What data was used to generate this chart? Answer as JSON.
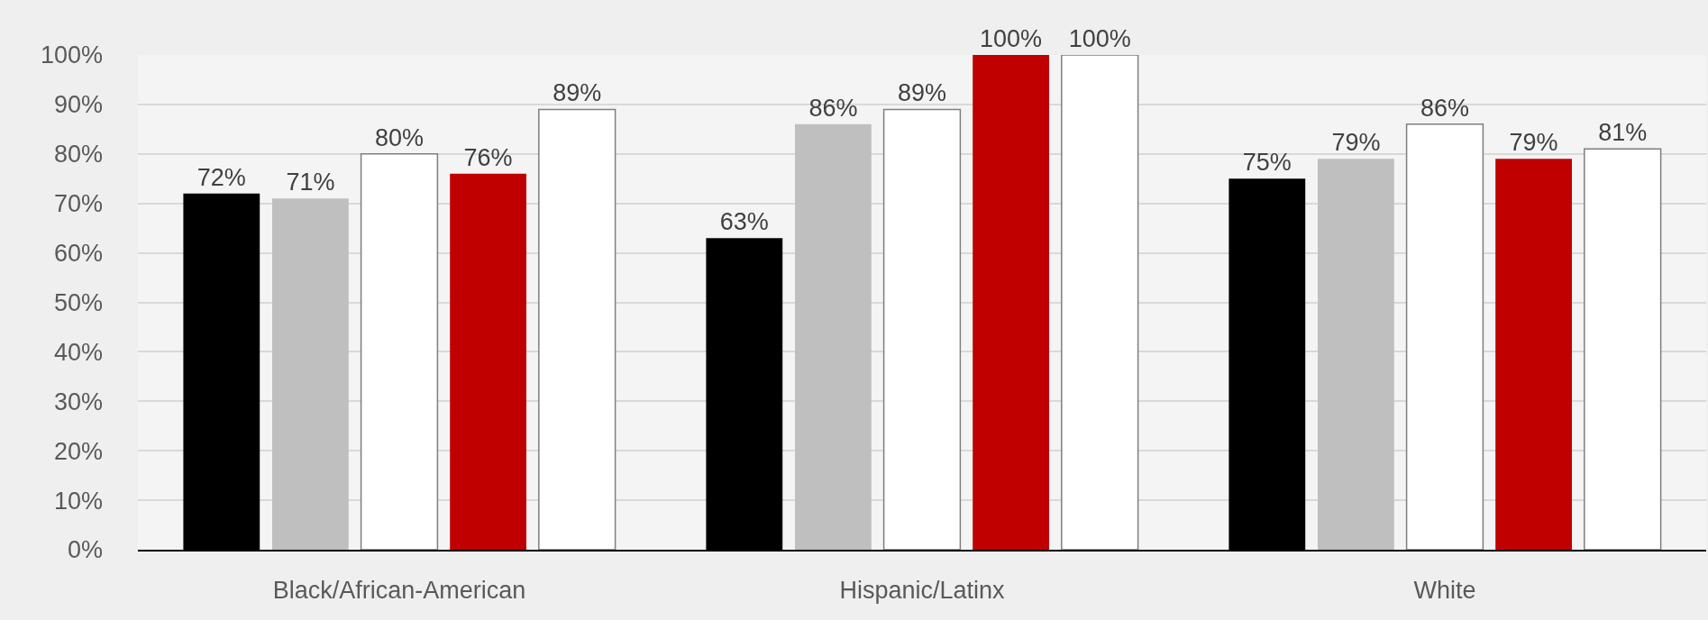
{
  "chart_data": {
    "type": "bar",
    "categories": [
      "Black/African-American",
      "Hispanic/Latinx",
      "White"
    ],
    "series": [
      {
        "color": "#000000",
        "values": [
          72,
          63,
          75
        ],
        "value_labels": [
          "72%",
          "63%",
          "75%"
        ]
      },
      {
        "color": "#bfbfbf",
        "values": [
          71,
          86,
          79
        ],
        "value_labels": [
          "71%",
          "86%",
          "79%"
        ]
      },
      {
        "color": "#ffffff",
        "values": [
          80,
          89,
          86
        ],
        "value_labels": [
          "80%",
          "89%",
          "86%"
        ]
      },
      {
        "color": "#c00000",
        "values": [
          76,
          100,
          79
        ],
        "value_labels": [
          "76%",
          "100%",
          "79%"
        ]
      },
      {
        "color": "#ffffff",
        "values": [
          89,
          100,
          81
        ],
        "value_labels": [
          "89%",
          "100%",
          "81%"
        ]
      }
    ],
    "ylim": [
      0,
      100
    ],
    "yticks": [
      {
        "value": 0,
        "label": "0%"
      },
      {
        "value": 10,
        "label": "10%"
      },
      {
        "value": 20,
        "label": "20%"
      },
      {
        "value": 30,
        "label": "30%"
      },
      {
        "value": 40,
        "label": "40%"
      },
      {
        "value": 50,
        "label": "50%"
      },
      {
        "value": 60,
        "label": "60%"
      },
      {
        "value": 70,
        "label": "70%"
      },
      {
        "value": 80,
        "label": "80%"
      },
      {
        "value": 90,
        "label": "90%"
      },
      {
        "value": 100,
        "label": "100%"
      }
    ],
    "grid": "y"
  }
}
